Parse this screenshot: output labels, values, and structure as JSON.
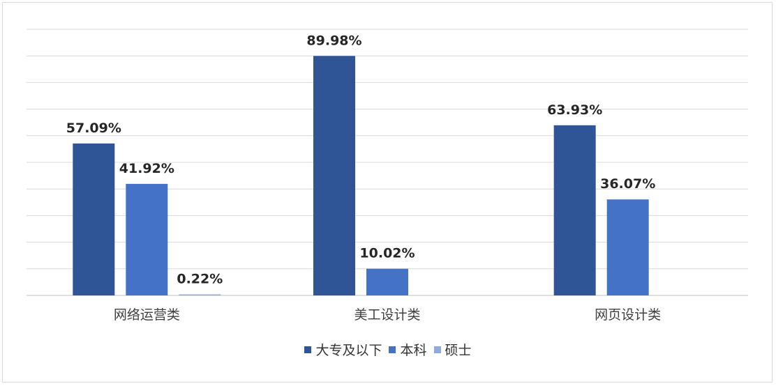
{
  "chart_data": {
    "type": "bar",
    "categories": [
      "网络运营类",
      "美工设计类",
      "网页设计类"
    ],
    "series": [
      {
        "name": "大专及以下",
        "color": "#2f5597",
        "values": [
          57.09,
          89.98,
          63.93
        ],
        "labels": [
          "57.09%",
          "89.98%",
          "63.93%"
        ]
      },
      {
        "name": "本科",
        "color": "#4472c4",
        "values": [
          41.92,
          10.02,
          36.07
        ],
        "labels": [
          "41.92%",
          "10.02%",
          "36.07%"
        ]
      },
      {
        "name": "硕士",
        "color": "#8faadc",
        "values": [
          0.22,
          null,
          null
        ],
        "labels": [
          "0.22%",
          "",
          ""
        ]
      }
    ],
    "ylim": [
      0,
      100
    ],
    "grid": true,
    "legend_position": "bottom",
    "title": "",
    "xlabel": "",
    "ylabel": ""
  }
}
